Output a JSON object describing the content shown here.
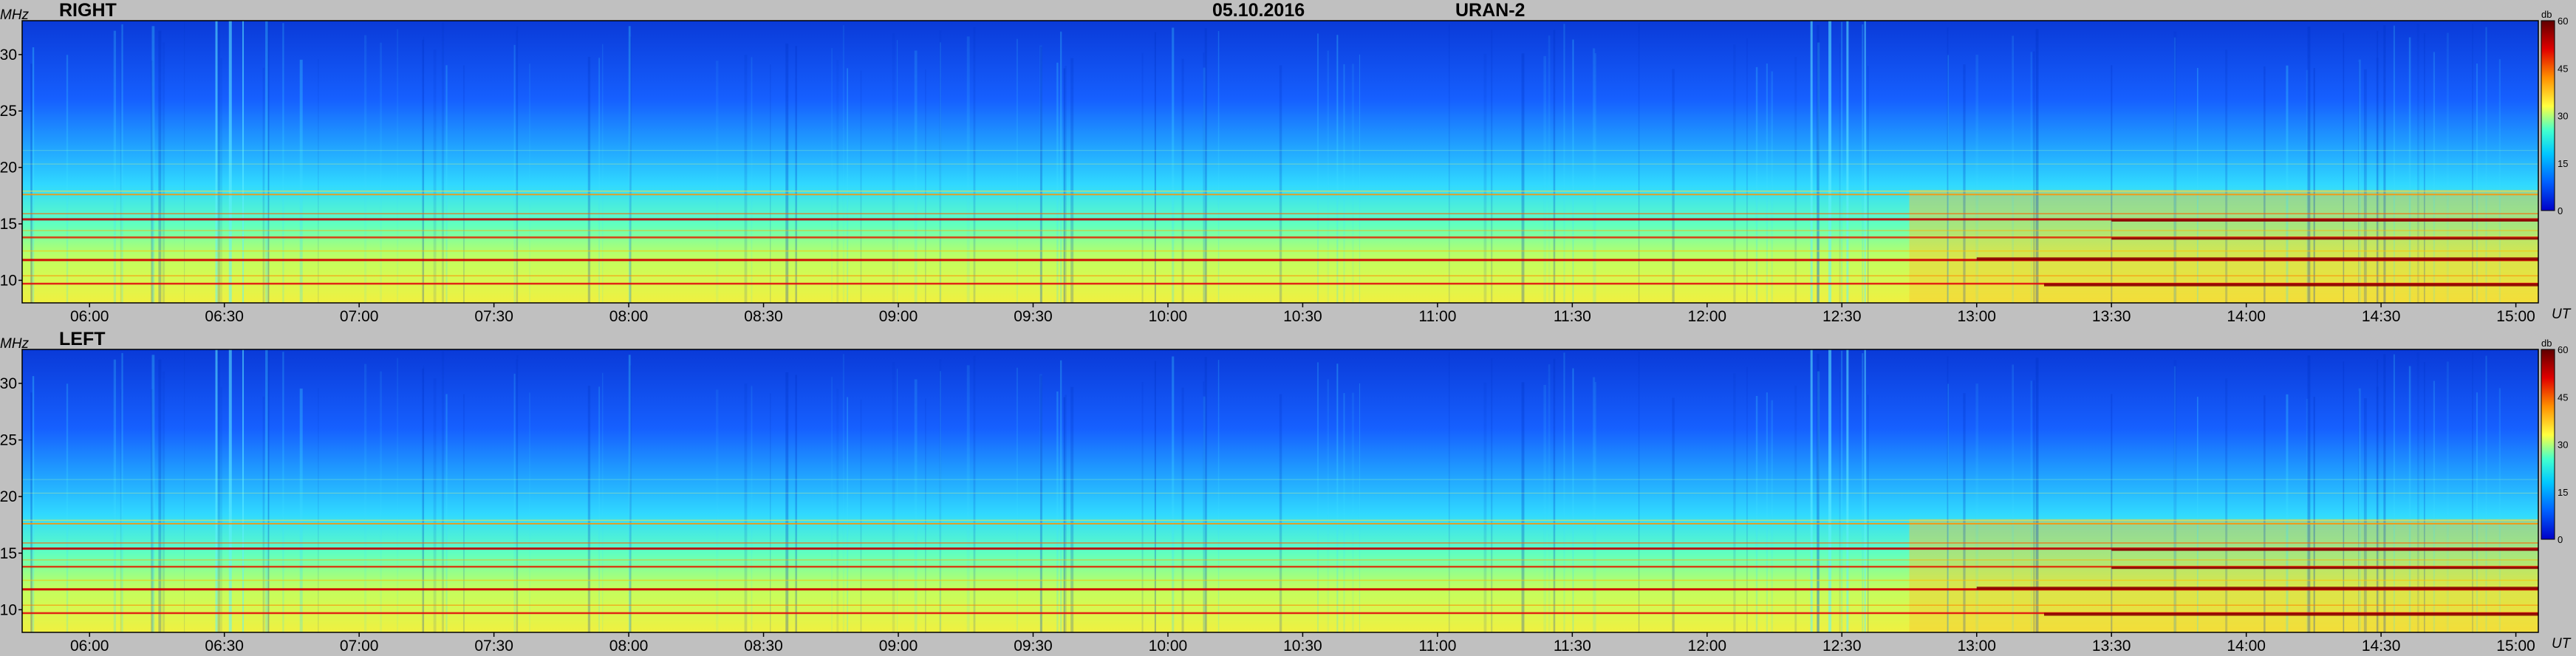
{
  "header": {
    "date": "05.10.2016",
    "instrument": "URAN-2"
  },
  "colorbar": {
    "unit": "db",
    "ticks": [
      "0",
      "15",
      "30",
      "45",
      "60"
    ],
    "stops": [
      "#0000c8",
      "#0060ff",
      "#00c8ff",
      "#40ffd0",
      "#ffff40",
      "#ff9000",
      "#e00000",
      "#600000"
    ]
  },
  "chart_data": [
    {
      "type": "heatmap",
      "title": "RIGHT",
      "xlabel": "UT",
      "ylabel": "MHz",
      "x_ticks": [
        "06:00",
        "06:30",
        "07:00",
        "07:30",
        "08:00",
        "08:30",
        "09:00",
        "09:30",
        "10:00",
        "10:30",
        "11:00",
        "11:30",
        "12:00",
        "12:30",
        "13:00",
        "13:30",
        "14:00",
        "14:30",
        "15:00"
      ],
      "y_ticks": [
        "10",
        "15",
        "20",
        "25",
        "30"
      ],
      "xlim": [
        "05:45",
        "15:05"
      ],
      "ylim": [
        8,
        33
      ],
      "zlim": [
        0,
        60
      ],
      "z_unit": "db"
    },
    {
      "type": "heatmap",
      "title": "LEFT",
      "xlabel": "UT",
      "ylabel": "MHz",
      "x_ticks": [
        "06:00",
        "06:30",
        "07:00",
        "07:30",
        "08:00",
        "08:30",
        "09:00",
        "09:30",
        "10:00",
        "10:30",
        "11:00",
        "11:30",
        "12:00",
        "12:30",
        "13:00",
        "13:30",
        "14:00",
        "14:30",
        "15:00"
      ],
      "y_ticks": [
        "10",
        "15",
        "20",
        "25",
        "30"
      ],
      "xlim": [
        "05:45",
        "15:05"
      ],
      "ylim": [
        8,
        33
      ],
      "zlim": [
        0,
        60
      ],
      "z_unit": "db"
    }
  ]
}
